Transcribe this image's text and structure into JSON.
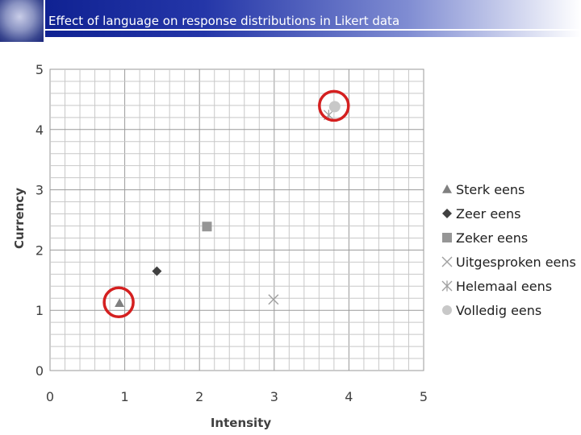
{
  "page": {
    "title": "Effect of language on response distributions in Likert data"
  },
  "chart_data": {
    "type": "scatter",
    "xlabel": "Intensity",
    "ylabel": "Currency",
    "xlim": [
      0,
      5
    ],
    "ylim": [
      0,
      5
    ],
    "x_ticks": [
      "0",
      "1",
      "2",
      "3",
      "4",
      "5"
    ],
    "y_ticks": [
      "0",
      "1",
      "2",
      "3",
      "4",
      "5"
    ],
    "grid": true,
    "legend_position": "right",
    "series": [
      {
        "name": "Sterk eens",
        "marker": "triangle",
        "color": "#808080",
        "x": 0.93,
        "y": 1.12
      },
      {
        "name": "Zeer eens",
        "marker": "diamond",
        "color": "#404040",
        "x": 1.43,
        "y": 1.65
      },
      {
        "name": "Zeker eens",
        "marker": "square",
        "color": "#969696",
        "x": 2.1,
        "y": 2.39
      },
      {
        "name": "Uitgesproken eens",
        "marker": "x",
        "color": "#a0a0a0",
        "x": 2.99,
        "y": 1.18
      },
      {
        "name": "Helemaal eens",
        "marker": "asterisk",
        "color": "#a0a0a0",
        "x": 3.73,
        "y": 4.24
      },
      {
        "name": "Volledig eens",
        "marker": "circle",
        "color": "#c8c8c8",
        "x": 3.81,
        "y": 4.38
      }
    ],
    "highlighted": [
      "Sterk eens",
      "Volledig eens"
    ],
    "highlight_color": "#d42020"
  }
}
